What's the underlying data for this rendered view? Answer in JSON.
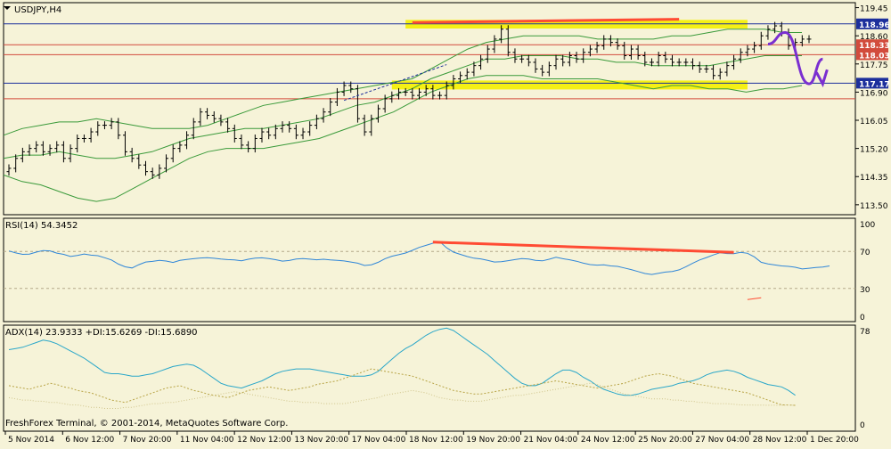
{
  "colors": {
    "background": "#f6f3d8",
    "frame": "#000000",
    "candle": "#000000",
    "band": "#3a9a3a",
    "blue_level": "#1c2f9c",
    "red_level": "#d24b3c",
    "yellow": "#f5f000",
    "trend_red": "#ff4b33",
    "purple": "#7a2fd0",
    "rsi": "#2f86d8",
    "adx": "#2aa7c9",
    "di": "#b8a446",
    "grid_dash": "#b3aa8a"
  },
  "chart_data": [
    {
      "type": "candlestick",
      "title": "USDJPY,H4",
      "ylim": [
        113.2,
        119.6
      ],
      "y_ticks": [
        "119.45",
        "118.60",
        "117.75",
        "116.90",
        "116.05",
        "115.20",
        "114.35",
        "113.50"
      ],
      "x_labels": [
        "5 Nov 2014",
        "6 Nov 12:00",
        "7 Nov 20:00",
        "11 Nov 04:00",
        "12 Nov 12:00",
        "13 Nov 20:00",
        "17 Nov 04:00",
        "18 Nov 12:00",
        "19 Nov 20:00",
        "21 Nov 04:00",
        "24 Nov 12:00",
        "25 Nov 20:00",
        "27 Nov 04:00",
        "28 Nov 12:00",
        "1 Dec 20:00"
      ],
      "close": [
        114.6,
        114.9,
        115.1,
        115.2,
        115.3,
        115.1,
        115.2,
        115.3,
        114.9,
        115.2,
        115.5,
        115.5,
        115.7,
        115.9,
        115.9,
        116.0,
        115.6,
        115.1,
        114.9,
        114.7,
        114.5,
        114.4,
        114.6,
        114.9,
        115.2,
        115.3,
        115.6,
        116.0,
        116.3,
        116.2,
        116.1,
        116.0,
        115.8,
        115.5,
        115.3,
        115.2,
        115.5,
        115.7,
        115.6,
        115.8,
        115.9,
        115.8,
        115.6,
        115.7,
        115.9,
        116.1,
        116.3,
        116.6,
        116.9,
        117.1,
        117.0,
        116.1,
        115.7,
        116.1,
        116.4,
        116.7,
        116.8,
        116.9,
        116.9,
        116.8,
        116.9,
        117.0,
        116.8,
        116.8,
        117.1,
        117.3,
        117.4,
        117.5,
        117.7,
        117.9,
        118.2,
        118.5,
        118.8,
        118.1,
        117.9,
        117.9,
        117.8,
        117.6,
        117.5,
        117.7,
        117.9,
        117.8,
        118.0,
        117.9,
        118.1,
        118.2,
        118.3,
        118.5,
        118.4,
        118.3,
        118.0,
        118.2,
        118.0,
        117.8,
        117.8,
        118.0,
        117.9,
        117.8,
        117.8,
        117.8,
        117.7,
        117.6,
        117.6,
        117.4,
        117.5,
        117.7,
        117.9,
        118.1,
        118.2,
        118.3,
        118.6,
        118.8,
        118.9,
        118.7,
        118.3,
        118.4,
        118.5,
        118.5
      ],
      "bollinger": {
        "upper": [
          115.6,
          115.8,
          115.9,
          116.0,
          116.0,
          116.1,
          116.0,
          115.9,
          115.8,
          115.8,
          115.8,
          115.9,
          116.1,
          116.3,
          116.5,
          116.6,
          116.7,
          116.8,
          116.9,
          117.0,
          117.1,
          117.2,
          117.3,
          117.6,
          117.9,
          118.2,
          118.4,
          118.5,
          118.6,
          118.6,
          118.6,
          118.6,
          118.5,
          118.5,
          118.5,
          118.5,
          118.6,
          118.6,
          118.7,
          118.8,
          118.8,
          118.8,
          118.7,
          118.7
        ],
        "middle": [
          114.9,
          115.0,
          115.0,
          115.1,
          115.0,
          114.9,
          114.9,
          115.0,
          115.1,
          115.3,
          115.5,
          115.6,
          115.7,
          115.8,
          115.8,
          115.9,
          116.0,
          116.1,
          116.3,
          116.5,
          116.6,
          116.8,
          117.0,
          117.3,
          117.5,
          117.7,
          117.9,
          117.9,
          118.0,
          118.0,
          118.0,
          117.9,
          117.9,
          117.8,
          117.8,
          117.7,
          117.7,
          117.7,
          117.7,
          117.8,
          117.9,
          118.0,
          118.0,
          118.0
        ],
        "lower": [
          114.4,
          114.2,
          114.1,
          113.9,
          113.7,
          113.6,
          113.7,
          114.0,
          114.3,
          114.6,
          114.9,
          115.1,
          115.2,
          115.2,
          115.2,
          115.3,
          115.4,
          115.5,
          115.7,
          115.9,
          116.1,
          116.3,
          116.6,
          116.9,
          117.1,
          117.3,
          117.4,
          117.4,
          117.4,
          117.3,
          117.3,
          117.3,
          117.3,
          117.2,
          117.1,
          117.0,
          117.1,
          117.1,
          117.0,
          117.0,
          116.9,
          117.0,
          117.0,
          117.1
        ]
      },
      "levels": [
        {
          "value": 118.96,
          "label": "118.96",
          "kind": "blue"
        },
        {
          "value": 118.33,
          "label": "118.33",
          "kind": "red"
        },
        {
          "value": 118.03,
          "label": "118.03",
          "kind": "red"
        },
        {
          "value": 117.17,
          "label": "117.17",
          "kind": "blue"
        },
        {
          "value": 116.7,
          "label": "",
          "kind": "red"
        }
      ],
      "annotations": [
        {
          "type": "rectangle",
          "color": "yellow",
          "x0_bar": 58,
          "x1_bar": 108,
          "y_top": 119.08,
          "y_bottom": 118.82
        },
        {
          "type": "rectangle",
          "color": "yellow",
          "x0_bar": 56,
          "x1_bar": 108,
          "y_top": 117.25,
          "y_bottom": 116.98
        },
        {
          "type": "trendline",
          "color": "red",
          "x0_bar": 59,
          "y0": 119.0,
          "x1_bar": 98,
          "y1": 119.1
        },
        {
          "type": "dashed_trendline",
          "color": "blue",
          "x0_bar": 49,
          "y0": 116.65,
          "x1_bar": 64,
          "y1": 117.73
        },
        {
          "type": "forecast_path",
          "color": "purple",
          "points": [
            [
              111,
              118.35
            ],
            [
              113.5,
              118.7
            ],
            [
              117,
              117.15
            ],
            [
              119,
              117.9
            ]
          ]
        }
      ]
    },
    {
      "type": "line",
      "title": "RSI(14) 54.3452",
      "ylim": [
        0,
        100
      ],
      "y_ticks": [
        "100",
        "70",
        "30",
        "0"
      ],
      "levels": [
        70,
        30
      ],
      "values": [
        70.5,
        68.4,
        66.8,
        67.1,
        69.2,
        71.0,
        70.6,
        68.2,
        66.8,
        64.5,
        65.6,
        67.2,
        66.0,
        65.4,
        63.2,
        60.8,
        56.3,
        53.4,
        52.1,
        55.7,
        58.6,
        59.2,
        60.4,
        59.6,
        58.1,
        60.3,
        61.3,
        62.1,
        62.9,
        63.2,
        62.6,
        61.7,
        61.2,
        60.8,
        59.9,
        61.5,
        62.8,
        63.1,
        62.3,
        61.1,
        59.5,
        60.2,
        61.8,
        62.3,
        61.6,
        61.0,
        61.5,
        60.9,
        60.4,
        59.7,
        58.6,
        57.3,
        54.8,
        55.6,
        58.3,
        62.1,
        64.8,
        66.4,
        68.3,
        71.2,
        74.3,
        76.5,
        78.8,
        80.5,
        73.9,
        69.2,
        66.8,
        64.5,
        62.7,
        61.9,
        60.3,
        58.6,
        58.9,
        60.0,
        61.2,
        62.3,
        61.7,
        60.4,
        59.8,
        61.5,
        63.7,
        62.1,
        61.0,
        59.4,
        57.3,
        55.8,
        55.2,
        55.6,
        54.3,
        53.8,
        52.1,
        50.4,
        48.3,
        46.2,
        45.1,
        46.3,
        47.7,
        48.4,
        50.1,
        53.5,
        57.3,
        60.8,
        63.4,
        66.2,
        68.6,
        67.7,
        67.5,
        69.0,
        68.0,
        64.1,
        58.3,
        56.5,
        55.4,
        54.3,
        53.8,
        52.9,
        51.1,
        51.8,
        52.7,
        53.1,
        54.3
      ],
      "trendline": {
        "x0_bar": 62,
        "y0": 80,
        "x1_bar": 106,
        "y1": 69
      },
      "stray_segment": {
        "x0_bar": 108,
        "y0": 18,
        "x1_bar": 110,
        "y1": 20
      }
    },
    {
      "type": "line",
      "title": "ADX(14) 23.9333 +DI:15.6269 -DI:15.6890",
      "ylim": [
        0,
        78
      ],
      "y_ticks": [
        "78",
        "0"
      ],
      "series": [
        {
          "name": "ADX",
          "values": [
            62,
            63,
            64,
            66,
            68,
            70,
            69,
            67,
            64,
            61,
            58,
            55,
            51,
            47,
            43,
            42,
            42,
            41,
            40,
            40,
            41,
            42,
            44,
            46,
            48,
            49,
            50,
            49,
            46,
            42,
            38,
            34,
            32,
            31,
            30,
            32,
            34,
            36,
            39,
            42,
            44,
            45,
            46,
            46,
            46,
            45,
            44,
            43,
            42,
            41,
            40,
            40,
            40,
            41,
            44,
            49,
            54,
            59,
            63,
            66,
            70,
            74,
            77,
            79,
            80,
            78,
            74,
            70,
            66,
            62,
            58,
            53,
            48,
            43,
            38,
            34,
            32,
            32,
            34,
            38,
            42,
            45,
            45,
            43,
            39,
            36,
            32,
            29,
            27,
            25,
            24,
            24,
            25,
            27,
            29,
            30,
            31,
            32,
            34,
            35,
            36,
            38,
            41,
            43,
            44,
            45,
            44,
            42,
            39,
            37,
            35,
            33,
            32,
            31,
            28,
            24
          ]
        },
        {
          "name": "+DI",
          "values": [
            32,
            31,
            30,
            29,
            31,
            32,
            34,
            33,
            31,
            30,
            28,
            27,
            26,
            24,
            22,
            20,
            19,
            18,
            20,
            22,
            24,
            26,
            28,
            30,
            31,
            32,
            30,
            28,
            27,
            25,
            24,
            23,
            22,
            24,
            26,
            28,
            29,
            30,
            31,
            30,
            29,
            28,
            29,
            30,
            31,
            33,
            34,
            35,
            36,
            38,
            40,
            42,
            44,
            46,
            45,
            44,
            43,
            42,
            41,
            40,
            38,
            36,
            34,
            32,
            30,
            28,
            27,
            26,
            25,
            25,
            26,
            27,
            28,
            29,
            30,
            31,
            32,
            33,
            34,
            35,
            36,
            35,
            34,
            33,
            32,
            31,
            30,
            31,
            32,
            33,
            34,
            36,
            38,
            40,
            41,
            42,
            41,
            40,
            38,
            36,
            34,
            33,
            32,
            31,
            30,
            29,
            28,
            27,
            26,
            24,
            22,
            20,
            18,
            16,
            16,
            15.6
          ]
        },
        {
          "name": "-DI",
          "values": [
            22,
            21,
            20,
            20,
            19,
            19,
            18,
            18,
            17,
            16,
            16,
            15,
            14,
            14,
            13,
            13,
            13,
            14,
            14,
            15,
            16,
            17,
            17,
            18,
            18,
            19,
            20,
            21,
            22,
            23,
            24,
            25,
            26,
            27,
            26,
            25,
            24,
            23,
            22,
            21,
            20,
            19,
            19,
            18,
            18,
            18,
            17,
            17,
            17,
            17,
            18,
            19,
            20,
            21,
            22,
            24,
            25,
            26,
            27,
            28,
            27,
            26,
            24,
            22,
            21,
            20,
            20,
            19,
            19,
            19,
            20,
            21,
            22,
            23,
            24,
            24,
            25,
            26,
            27,
            28,
            29,
            30,
            31,
            32,
            33,
            34,
            33,
            31,
            29,
            27,
            25,
            24,
            23,
            22,
            21,
            21,
            21,
            20,
            20,
            19,
            19,
            18,
            18,
            17,
            17,
            17,
            16.5,
            16,
            15.9,
            15.8,
            15.8,
            15.7,
            15.7,
            15.7,
            15.7,
            15.7
          ]
        }
      ]
    }
  ],
  "footer": {
    "copyright": "FreshForex Terminal, © 2001-2014, MetaQuotes Software Corp."
  }
}
